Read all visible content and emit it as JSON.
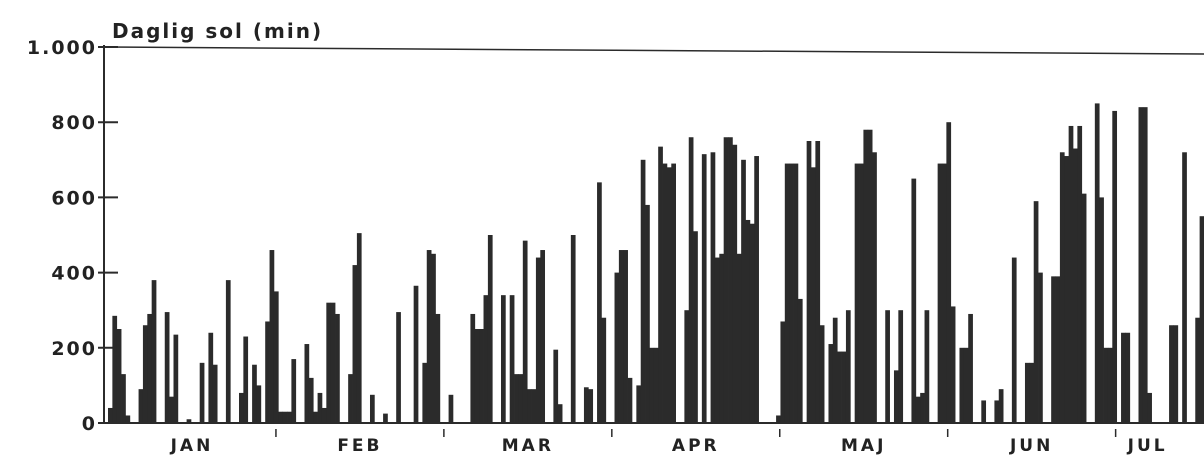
{
  "chart_data": {
    "type": "bar",
    "title": "",
    "ylabel": "Daglig sol (min)",
    "xlabel": "",
    "ylim": [
      0,
      1000
    ],
    "yticks": [
      0,
      200,
      400,
      600,
      800,
      1000
    ],
    "ytick_labels": [
      "0",
      "200",
      "400",
      "600",
      "800",
      "1.000"
    ],
    "months": [
      "JAN",
      "FEB",
      "MAR",
      "APR",
      "MAJ",
      "JUN",
      "JUL"
    ],
    "grid": false,
    "bar_color": "#2b2b2b",
    "values": [
      40,
      285,
      250,
      130,
      20,
      0,
      0,
      90,
      260,
      290,
      380,
      0,
      0,
      295,
      70,
      235,
      0,
      0,
      10,
      0,
      0,
      160,
      0,
      240,
      155,
      0,
      0,
      380,
      0,
      0,
      80,
      230,
      0,
      155,
      100,
      0,
      270,
      460,
      350,
      30,
      30,
      30,
      170,
      0,
      0,
      210,
      120,
      30,
      80,
      40,
      320,
      320,
      290,
      0,
      0,
      130,
      420,
      505,
      0,
      0,
      75,
      0,
      0,
      25,
      0,
      0,
      295,
      0,
      0,
      0,
      365,
      0,
      160,
      460,
      450,
      290,
      0,
      0,
      75,
      0,
      0,
      0,
      0,
      290,
      250,
      250,
      340,
      500,
      0,
      0,
      340,
      0,
      340,
      130,
      130,
      485,
      90,
      90,
      440,
      460,
      0,
      0,
      195,
      50,
      0,
      0,
      500,
      0,
      0,
      95,
      90,
      0,
      640,
      280,
      0,
      0,
      400,
      460,
      460,
      120,
      0,
      100,
      700,
      580,
      200,
      200,
      735,
      690,
      680,
      690,
      0,
      0,
      300,
      760,
      510,
      0,
      715,
      0,
      720,
      440,
      450,
      760,
      760,
      740,
      450,
      700,
      540,
      530,
      710,
      0,
      0,
      0,
      0,
      20,
      270,
      690,
      690,
      690,
      330,
      0,
      750,
      680,
      750,
      260,
      0,
      210,
      280,
      190,
      190,
      300,
      0,
      690,
      690,
      780,
      780,
      720,
      0,
      0,
      300,
      0,
      140,
      300,
      0,
      0,
      650,
      70,
      80,
      300,
      0,
      0,
      690,
      690,
      800,
      310,
      0,
      200,
      200,
      290,
      0,
      0,
      60,
      0,
      0,
      60,
      90,
      0,
      0,
      440,
      0,
      0,
      160,
      160,
      590,
      400,
      0,
      0,
      390,
      390,
      720,
      710,
      790,
      730,
      790,
      610,
      0,
      0,
      850,
      600,
      200,
      200,
      830,
      0,
      240,
      240,
      0,
      0,
      840,
      840,
      80,
      0,
      0,
      0,
      0,
      260,
      260,
      0,
      720,
      0,
      0,
      280,
      550
    ]
  }
}
